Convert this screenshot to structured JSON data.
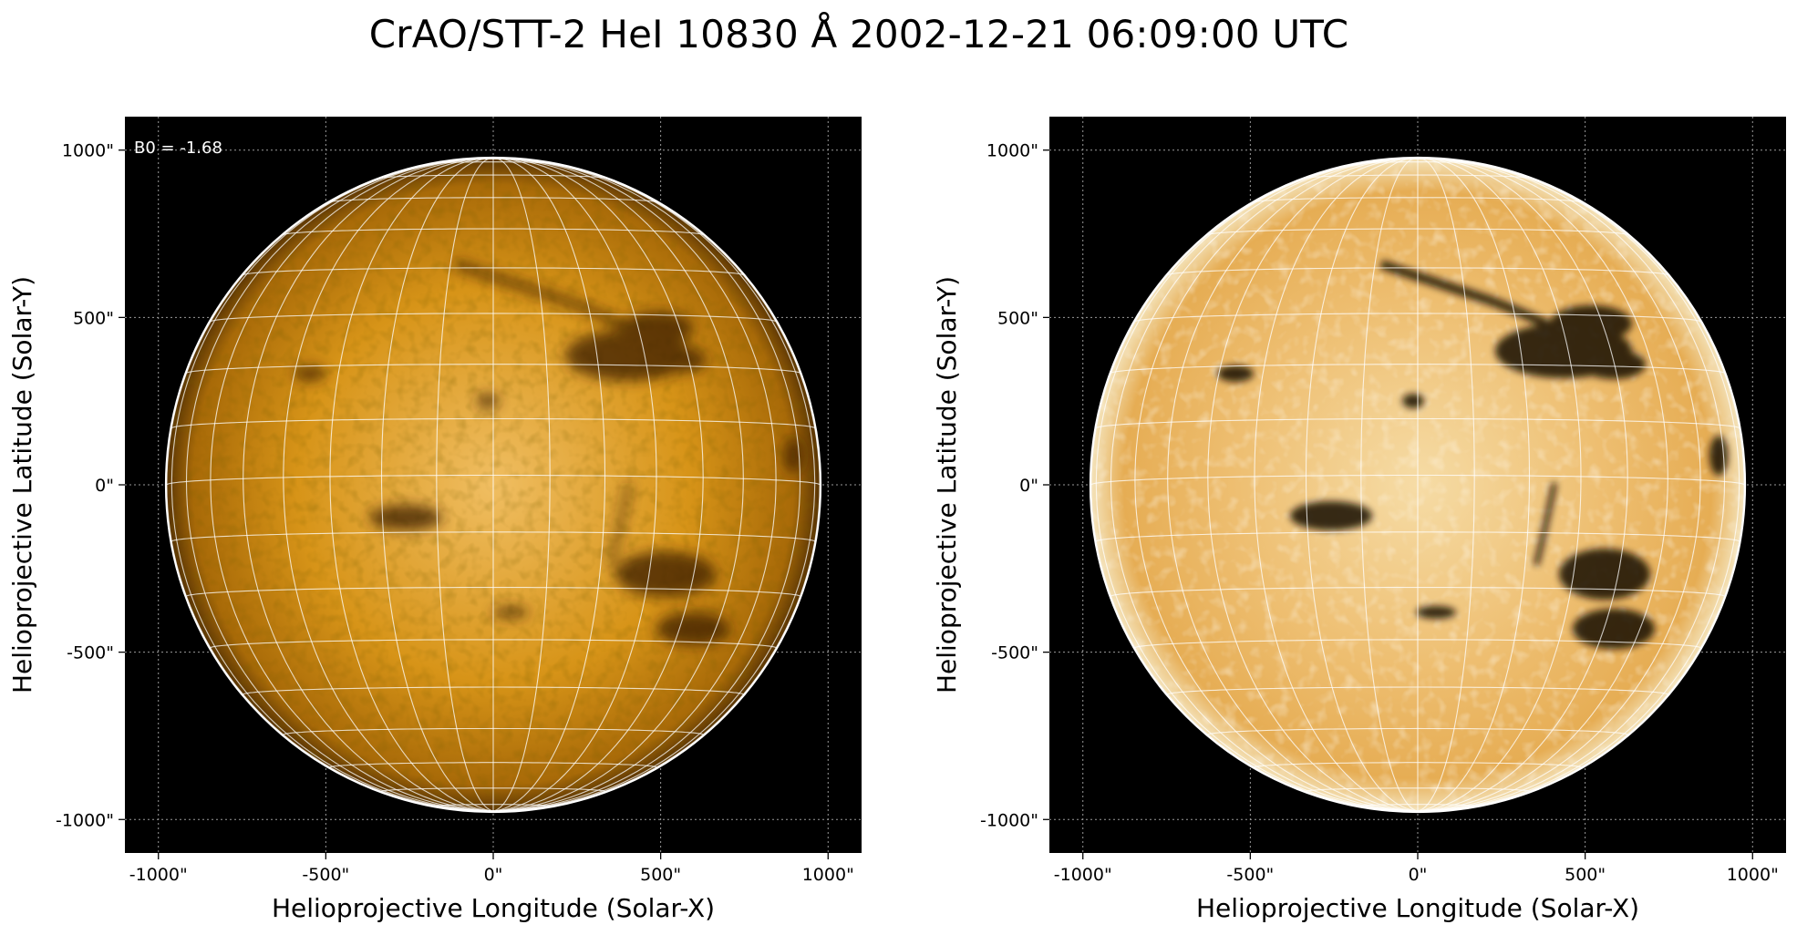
{
  "figure": {
    "title": "CrAO/STT-2 HeI 10830 Å 2002-12-21 06:09:00 UTC"
  },
  "colors": {
    "background": "#ffffff",
    "plot_background": "#000000",
    "disk_light": "#f2c878",
    "disk_mid": "#d48a10",
    "disk_dark": "#3a2000",
    "grid": "#ffffff",
    "limb": "#ffffff"
  },
  "panels": [
    {
      "id": "left",
      "xlabel": "Helioprojective Longitude (Solar-X)",
      "ylabel": "Helioprojective Latitude (Solar-Y)",
      "annotation": "B0 = -1.68",
      "contrast": "normal"
    },
    {
      "id": "right",
      "xlabel": "Helioprojective Longitude (Solar-X)",
      "ylabel": "Helioprojective Latitude (Solar-Y)",
      "annotation": "",
      "contrast": "enhanced"
    }
  ],
  "axes": {
    "x_ticks": [
      "-1000\"",
      "-500\"",
      "0\"",
      "500\"",
      "1000\""
    ],
    "y_ticks": [
      "1000\"",
      "500\"",
      "0\"",
      "-500\"",
      "-1000\""
    ],
    "x_tick_values": [
      -1000,
      -500,
      0,
      500,
      1000
    ],
    "y_tick_values": [
      1000,
      500,
      0,
      -500,
      -1000
    ],
    "xlim": [
      -1100,
      1100
    ],
    "ylim": [
      -1100,
      1100
    ],
    "solar_radius_arcsec": 975,
    "b0_deg": -1.68,
    "grid_step_deg": 10
  }
}
